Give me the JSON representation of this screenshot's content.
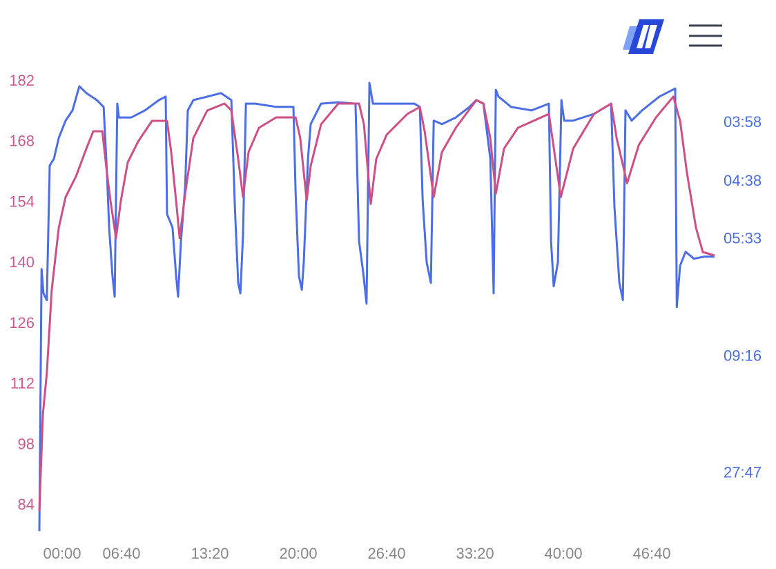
{
  "chart_data": {
    "type": "line",
    "xlim": [
      0,
      3084
    ],
    "xticks": [
      {
        "value": 0,
        "label": "00:00"
      },
      {
        "value": 400,
        "label": "06:40"
      },
      {
        "value": 800,
        "label": "13:20"
      },
      {
        "value": 1200,
        "label": "20:00"
      },
      {
        "value": 1600,
        "label": "26:40"
      },
      {
        "value": 2000,
        "label": "33:20"
      },
      {
        "value": 2400,
        "label": "40:00"
      },
      {
        "value": 2800,
        "label": "46:40"
      }
    ],
    "ylim": [
      78,
      182
    ],
    "yticks": [
      84,
      98,
      112,
      126,
      140,
      154,
      168,
      182
    ],
    "y2lim": [
      0,
      16.66
    ],
    "y2ticks": [
      {
        "value": 15.126,
        "label": "03:58"
      },
      {
        "value": 12.95,
        "label": "04:38"
      },
      {
        "value": 10.811,
        "label": "05:33"
      },
      {
        "value": 6.475,
        "label": "09:16"
      },
      {
        "value": 2.16,
        "label": "27:47"
      }
    ],
    "y_color": "#cc5a8e",
    "y2_color": "#4a6ee0",
    "series": [
      {
        "color": "#4b6ee6",
        "axis": "y2",
        "x": [
          28,
          38,
          47,
          62,
          75,
          94,
          116,
          147,
          178,
          209,
          241,
          288,
          319,
          334,
          344,
          359,
          369,
          381,
          388,
          444,
          506,
          569,
          600,
          606,
          631,
          647,
          656,
          669,
          688,
          700,
          725,
          788,
          850,
          897,
          913,
          928,
          938,
          950,
          963,
          1006,
          1100,
          1178,
          1188,
          1203,
          1216,
          1225,
          1244,
          1256,
          1303,
          1381,
          1459,
          1475,
          1494,
          1509,
          1522,
          1538,
          1600,
          1725,
          1750,
          1763,
          1781,
          1800,
          1813,
          1850,
          1913,
          1975,
          2006,
          2038,
          2069,
          2084,
          2094,
          2106,
          2163,
          2256,
          2334,
          2344,
          2356,
          2375,
          2391,
          2403,
          2444,
          2538,
          2616,
          2631,
          2653,
          2669,
          2681,
          2709,
          2756,
          2834,
          2906,
          2913,
          2928,
          2953,
          2991,
          3038,
          3084
        ],
        "values": [
          0.02,
          9.72,
          8.82,
          8.57,
          13.55,
          13.8,
          14.57,
          15.21,
          15.59,
          16.48,
          16.23,
          15.97,
          15.72,
          13.29,
          11.25,
          9.46,
          8.7,
          15.84,
          15.33,
          15.33,
          15.59,
          15.97,
          16.1,
          11.76,
          11.25,
          9.46,
          8.7,
          10.74,
          12.78,
          15.59,
          15.97,
          16.1,
          16.23,
          15.97,
          12.01,
          9.21,
          8.82,
          10.99,
          15.84,
          15.84,
          15.72,
          15.72,
          12.53,
          9.46,
          8.95,
          9.97,
          13.8,
          15.08,
          15.84,
          15.89,
          15.84,
          10.74,
          9.59,
          8.44,
          16.61,
          15.84,
          15.84,
          15.84,
          15.72,
          12.27,
          9.97,
          9.21,
          15.21,
          15.08,
          15.33,
          15.72,
          15.97,
          15.84,
          13.8,
          8.82,
          16.35,
          16.1,
          15.72,
          15.59,
          15.84,
          10.74,
          9.08,
          9.97,
          15.97,
          15.21,
          15.21,
          15.46,
          15.84,
          12.01,
          9.21,
          8.57,
          15.59,
          15.21,
          15.59,
          16.1,
          16.4,
          8.31,
          9.85,
          10.36,
          10.1,
          10.18,
          10.18
        ]
      },
      {
        "color": "#cc4f86",
        "x": [
          28,
          44,
          62,
          84,
          116,
          147,
          194,
          241,
          272,
          313,
          334,
          350,
          375,
          397,
          428,
          475,
          538,
          606,
          625,
          650,
          663,
          688,
          725,
          788,
          866,
          897,
          928,
          950,
          975,
          1022,
          1100,
          1188,
          1209,
          1238,
          1256,
          1303,
          1381,
          1475,
          1497,
          1528,
          1553,
          1600,
          1694,
          1750,
          1772,
          1813,
          1850,
          1913,
          2006,
          2038,
          2069,
          2094,
          2131,
          2194,
          2334,
          2350,
          2388,
          2444,
          2538,
          2616,
          2641,
          2688,
          2741,
          2819,
          2897,
          2928,
          2959,
          3000,
          3031,
          3084
        ],
        "values": [
          82.7,
          105.1,
          114.6,
          133.8,
          148.2,
          155.3,
          160.1,
          166.5,
          170.5,
          170.5,
          160.9,
          154.5,
          145.8,
          154.5,
          163.3,
          168.1,
          172.9,
          172.9,
          165.7,
          152.9,
          145.8,
          156.1,
          168.9,
          175.3,
          176.9,
          175.3,
          164.1,
          155.3,
          165.7,
          171.3,
          173.7,
          173.7,
          168.9,
          154.5,
          162.5,
          172.1,
          176.9,
          176.9,
          172.1,
          153.7,
          164.1,
          169.7,
          174.5,
          176.1,
          170.5,
          155.3,
          165.7,
          171.3,
          177.7,
          176.9,
          168.9,
          156.1,
          166.5,
          171.3,
          174.5,
          168.9,
          155.3,
          166.5,
          174.5,
          176.9,
          168.9,
          158.5,
          167.3,
          173.7,
          178.5,
          172.9,
          160.9,
          148.2,
          142.6,
          141.8
        ]
      }
    ]
  }
}
